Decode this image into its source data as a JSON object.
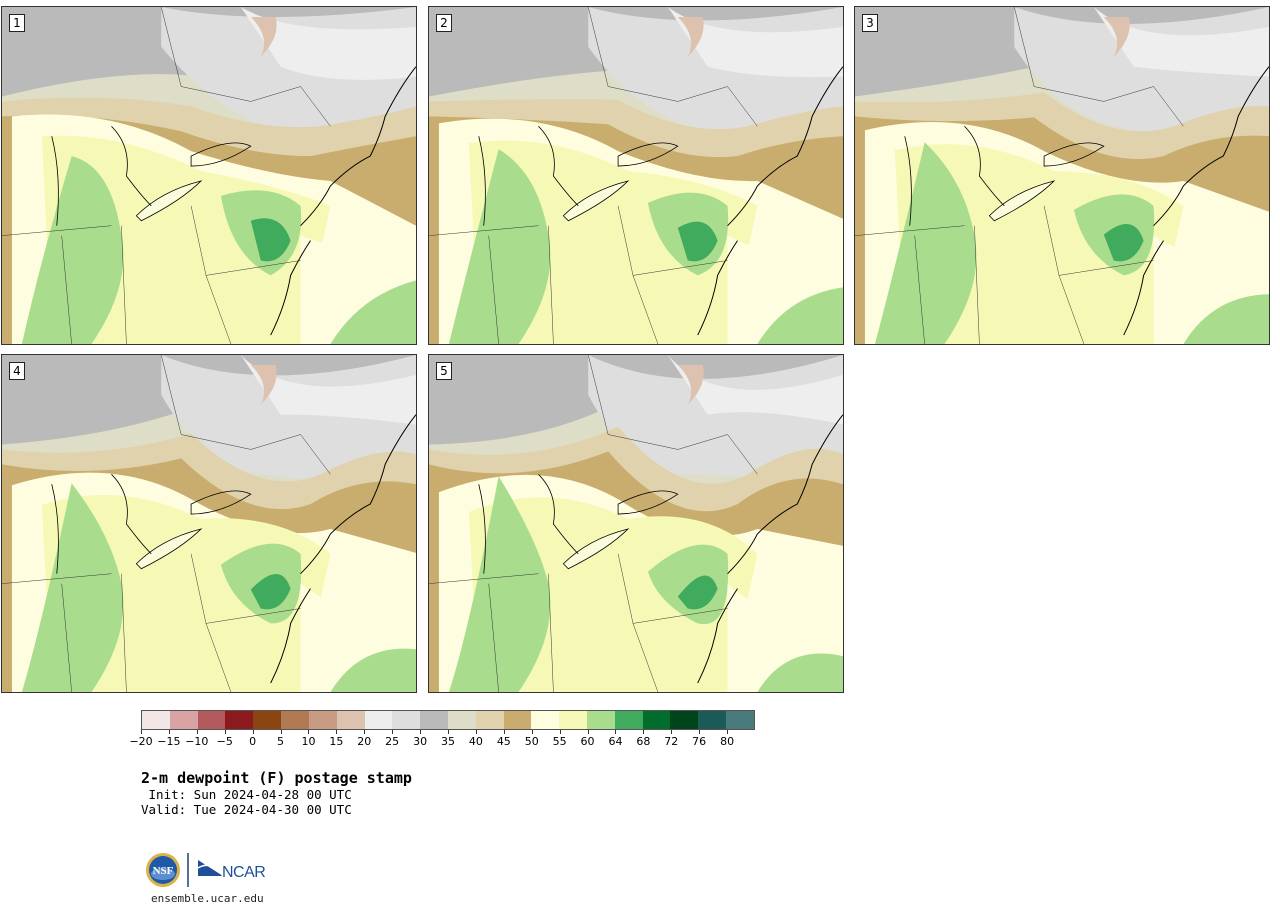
{
  "panels": [
    {
      "label": "1",
      "variant": 0
    },
    {
      "label": "2",
      "variant": 1
    },
    {
      "label": "3",
      "variant": 2
    },
    {
      "label": "4",
      "variant": 3
    },
    {
      "label": "5",
      "variant": 4
    }
  ],
  "colorbar": {
    "colors": [
      "#f2e6e6",
      "#d9a3a6",
      "#b35a5f",
      "#8b1a1f",
      "#8b4513",
      "#b07a55",
      "#c89c82",
      "#ddc2b0",
      "#eeeeee",
      "#dedede",
      "#bababa",
      "#dedec8",
      "#e0d2ac",
      "#c8ad6e",
      "#fefde0",
      "#f6f9b6",
      "#a9dd8d",
      "#41ab5d",
      "#006d2c",
      "#00441b",
      "#1d5955",
      "#4a7b7b"
    ],
    "tick_labels": [
      "−20",
      "−15",
      "−10",
      "−5",
      "0",
      "5",
      "10",
      "15",
      "20",
      "25",
      "30",
      "35",
      "40",
      "45",
      "50",
      "55",
      "60",
      "64",
      "68",
      "72",
      "76",
      "80"
    ]
  },
  "title": "2-m dewpoint (F) postage stamp",
  "init": " Init: Sun 2024-04-28 00 UTC",
  "valid": "Valid: Tue 2024-04-30 00 UTC",
  "logos": {
    "nsf": "NSF",
    "ncar": "NCAR"
  },
  "url": "ensemble.ucar.edu"
}
